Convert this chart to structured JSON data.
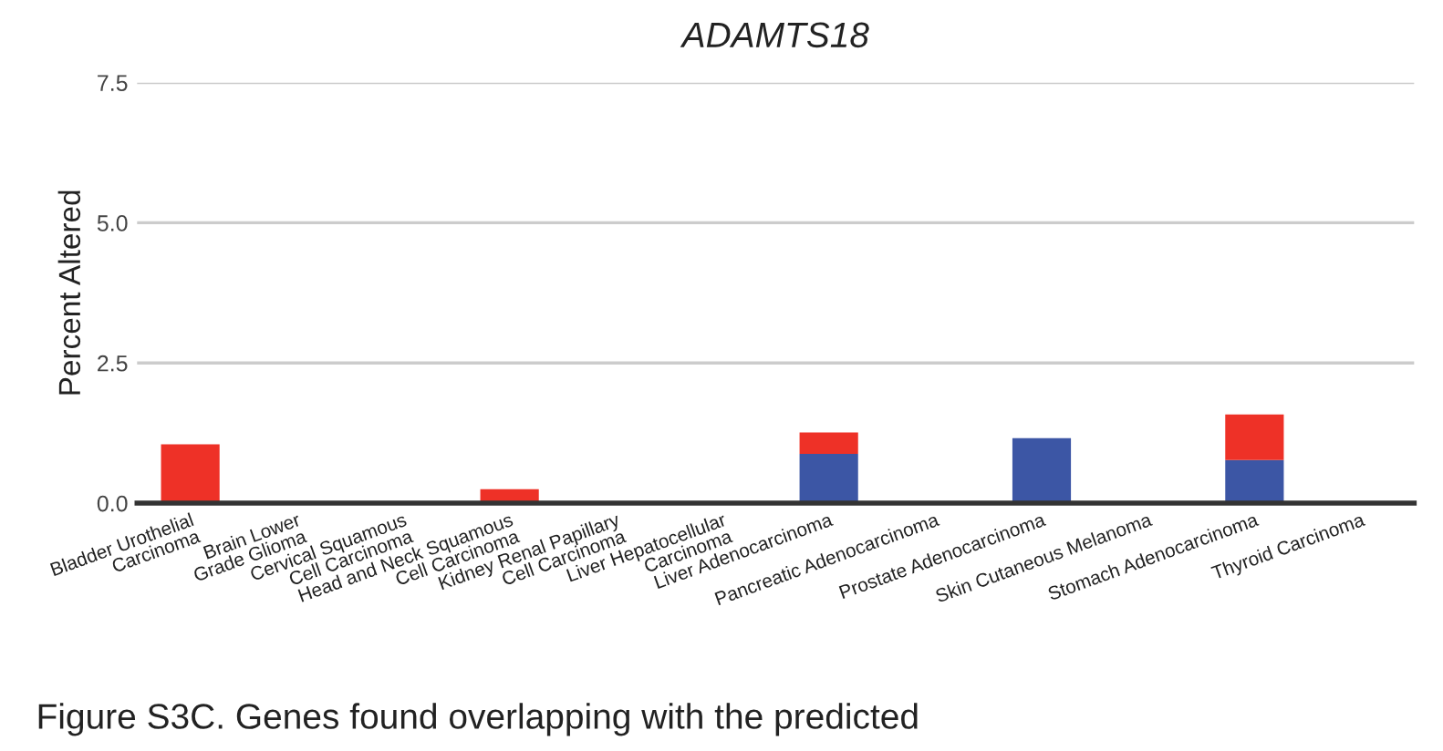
{
  "chart_data": {
    "type": "bar",
    "title": "ADAMTS18",
    "ylabel": "Percent Altered",
    "categories": [
      "Bladder Urothelial\nCarcinoma",
      "Brain Lower\nGrade Glioma",
      "Cervical Squamous\nCell Carcinoma",
      "Head and Neck Squamous\nCell Carcinoma",
      "Kidney Renal Papillary\nCell Carcinoma",
      "Liver Hepatocellular\nCarcinoma",
      "Liver Adenocarcinoma",
      "Pancreatic Adenocarcinoma",
      "Prostate Adenocarcinoma",
      "Skin Cutaneous Melanoma",
      "Stomach Adenocarcinoma",
      "Thyroid Carcinoma"
    ],
    "series": [
      {
        "color": "#3c56a5",
        "values": [
          0,
          0,
          0,
          0,
          0,
          0,
          0.88,
          0,
          1.16,
          0,
          0.77,
          0
        ]
      },
      {
        "color": "#ee3127",
        "values": [
          1.05,
          0,
          0,
          0.25,
          0,
          0,
          0.38,
          0,
          0,
          0,
          0.81,
          0
        ]
      }
    ],
    "stacked": true,
    "ylim": [
      0,
      7.5
    ],
    "yticks": [
      {
        "value": 0,
        "label": "0.0"
      },
      {
        "value": 2.5,
        "label": "2.5"
      },
      {
        "value": 5,
        "label": "5.0"
      },
      {
        "value": 7.5,
        "label": "7.5"
      }
    ],
    "grid": "y",
    "annotations": [
      "Figure S3C. Genes found overlapping with the predicted"
    ]
  }
}
